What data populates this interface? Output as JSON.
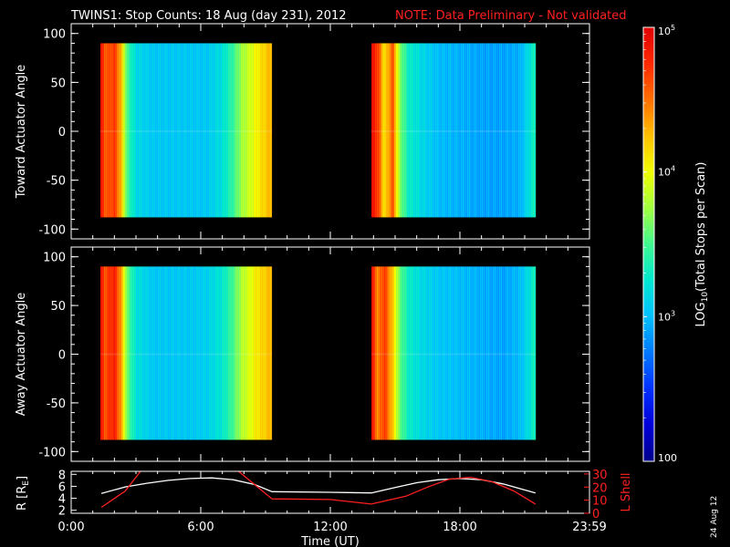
{
  "header": {
    "title": "TWINS1: Stop Counts: 18 Aug (day 231), 2012",
    "note": "NOTE: Data Preliminary - Not validated"
  },
  "footer": {
    "date_stamp": "24 Aug 12"
  },
  "colors": {
    "background": "#000000",
    "axis": "#ffffff",
    "note": "#ff2020",
    "r_line": "#ffffff",
    "lshell_line": "#ff2020"
  },
  "colorbar": {
    "label": "LOG10(Total Stops per Scan)",
    "label_main": "LOG",
    "label_sub": "10",
    "label_rest": "(Total Stops per Scan)",
    "scale": "log",
    "range": [
      100,
      100000
    ],
    "ticks": [
      {
        "value": 100,
        "label": "100"
      },
      {
        "value": 1000,
        "label": "10",
        "sup": "3"
      },
      {
        "value": 10000,
        "label": "10",
        "sup": "4"
      },
      {
        "value": 100000,
        "label": "10",
        "sup": "5"
      }
    ],
    "colormap": [
      "#00008c",
      "#0000d8",
      "#0030ff",
      "#0078ff",
      "#00c0ff",
      "#00e8d0",
      "#40f890",
      "#a0ff40",
      "#f0ff00",
      "#ffc000",
      "#ff7000",
      "#ff2800",
      "#e00000"
    ]
  },
  "chart_data": [
    {
      "type": "heatmap",
      "name": "toward",
      "ylabel": "Toward Actuator Angle",
      "ylim": [
        -110,
        110
      ],
      "yticks": [
        {
          "v": 100,
          "label": "100"
        },
        {
          "v": 50,
          "label": "50"
        },
        {
          "v": 0,
          "label": "0"
        },
        {
          "v": -50,
          "label": "-50"
        },
        {
          "v": -100,
          "label": "-100"
        }
      ],
      "angle_range": [
        -88,
        90
      ],
      "blocks": [
        {
          "time_range_h": [
            1.35,
            9.3
          ],
          "stops": [
            [
              1.35,
              4.9
            ],
            [
              1.55,
              4.6
            ],
            [
              1.75,
              4.6
            ],
            [
              2.0,
              4.7
            ],
            [
              2.3,
              4.3
            ],
            [
              2.6,
              3.5
            ],
            [
              3.0,
              3.15
            ],
            [
              3.8,
              3.05
            ],
            [
              4.8,
              3.05
            ],
            [
              5.5,
              3.05
            ],
            [
              6.3,
              3.05
            ],
            [
              7.0,
              3.2
            ],
            [
              7.5,
              3.45
            ],
            [
              7.9,
              3.75
            ],
            [
              8.3,
              3.9
            ],
            [
              8.6,
              4.05
            ],
            [
              9.0,
              4.2
            ],
            [
              9.3,
              4.3
            ]
          ]
        },
        {
          "time_range_h": [
            13.9,
            21.5
          ],
          "stops": [
            [
              13.9,
              4.9
            ],
            [
              14.2,
              4.7
            ],
            [
              14.5,
              4.1
            ],
            [
              14.9,
              4.6
            ],
            [
              15.2,
              3.7
            ],
            [
              15.6,
              3.3
            ],
            [
              16.2,
              3.15
            ],
            [
              17.0,
              3.0
            ],
            [
              18.0,
              2.95
            ],
            [
              19.0,
              2.9
            ],
            [
              20.0,
              2.9
            ],
            [
              20.8,
              2.95
            ],
            [
              21.2,
              3.2
            ],
            [
              21.5,
              3.35
            ]
          ]
        }
      ]
    },
    {
      "type": "heatmap",
      "name": "away",
      "ylabel": "Away Actuator Angle",
      "ylim": [
        -110,
        110
      ],
      "yticks": [
        {
          "v": 100,
          "label": "100"
        },
        {
          "v": 50,
          "label": "50"
        },
        {
          "v": 0,
          "label": "0"
        },
        {
          "v": -50,
          "label": "-50"
        },
        {
          "v": -100,
          "label": "-100"
        }
      ],
      "angle_range": [
        -88,
        90
      ],
      "blocks": [
        {
          "time_range_h": [
            1.35,
            9.3
          ],
          "stops": [
            [
              1.35,
              4.9
            ],
            [
              1.55,
              4.6
            ],
            [
              1.75,
              4.7
            ],
            [
              2.0,
              4.8
            ],
            [
              2.3,
              4.4
            ],
            [
              2.6,
              3.6
            ],
            [
              3.0,
              3.2
            ],
            [
              3.8,
              3.05
            ],
            [
              4.8,
              3.05
            ],
            [
              5.5,
              3.05
            ],
            [
              6.3,
              3.1
            ],
            [
              7.0,
              3.25
            ],
            [
              7.5,
              3.5
            ],
            [
              7.9,
              3.8
            ],
            [
              8.3,
              3.95
            ],
            [
              8.6,
              4.1
            ],
            [
              9.0,
              4.2
            ],
            [
              9.3,
              4.3
            ]
          ]
        },
        {
          "time_range_h": [
            13.9,
            21.5
          ],
          "stops": [
            [
              13.9,
              4.9
            ],
            [
              14.2,
              4.4
            ],
            [
              14.5,
              4.7
            ],
            [
              14.9,
              4.2
            ],
            [
              15.2,
              3.6
            ],
            [
              15.6,
              3.3
            ],
            [
              16.2,
              3.15
            ],
            [
              17.0,
              3.05
            ],
            [
              18.0,
              3.0
            ],
            [
              19.0,
              2.95
            ],
            [
              20.0,
              2.9
            ],
            [
              20.8,
              3.0
            ],
            [
              21.2,
              3.2
            ],
            [
              21.5,
              3.35
            ]
          ]
        }
      ]
    },
    {
      "type": "line",
      "name": "ephemeris",
      "xlabel": "Time (UT)",
      "xlim": [
        0,
        24
      ],
      "xticks": [
        {
          "v": 0,
          "label": "0:00"
        },
        {
          "v": 6,
          "label": "6:00"
        },
        {
          "v": 12,
          "label": "12:00"
        },
        {
          "v": 18,
          "label": "18:00"
        },
        {
          "v": 24,
          "label": "23:59"
        }
      ],
      "ylabel_left": "R [RE]",
      "ylabel_left_main": "R [R",
      "ylabel_left_sub": "E",
      "ylabel_left_close": "]",
      "ylim_left": [
        1.5,
        8.5
      ],
      "yticks_left": [
        {
          "v": 2,
          "label": "2"
        },
        {
          "v": 4,
          "label": "4"
        },
        {
          "v": 6,
          "label": "6"
        },
        {
          "v": 8,
          "label": "8"
        }
      ],
      "ylabel_right": "L Shell",
      "ylim_right": [
        0,
        32
      ],
      "yticks_right": [
        {
          "v": 0,
          "label": "0"
        },
        {
          "v": 10,
          "label": "10"
        },
        {
          "v": 20,
          "label": "20"
        },
        {
          "v": 30,
          "label": "30"
        }
      ],
      "series": [
        {
          "axis": "left",
          "color": "#ffffff",
          "x": [
            1.4,
            2.5,
            3.5,
            4.5,
            5.5,
            6.5,
            7.5,
            8.5,
            9.3,
            12.0,
            13.9,
            15.0,
            16.0,
            17.0,
            18.0,
            19.0,
            20.0,
            21.5
          ],
          "y": [
            4.8,
            5.9,
            6.5,
            7.0,
            7.3,
            7.4,
            7.1,
            6.3,
            5.1,
            5.0,
            4.9,
            5.8,
            6.6,
            7.1,
            7.3,
            7.1,
            6.4,
            4.9
          ]
        },
        {
          "axis": "right",
          "color": "#ff2020",
          "x": [
            1.4,
            2.5,
            3.4,
            3.6,
            7.3,
            7.6,
            9.3,
            12.0,
            13.9,
            15.5,
            16.5,
            17.5,
            18.5,
            19.5,
            20.5,
            21.5
          ],
          "y": [
            4.5,
            17.0,
            36.0,
            36.0,
            36.0,
            34.0,
            11.0,
            10.5,
            7.0,
            13.0,
            20.0,
            26.0,
            27.5,
            24.0,
            17.0,
            7.0
          ]
        }
      ]
    }
  ]
}
